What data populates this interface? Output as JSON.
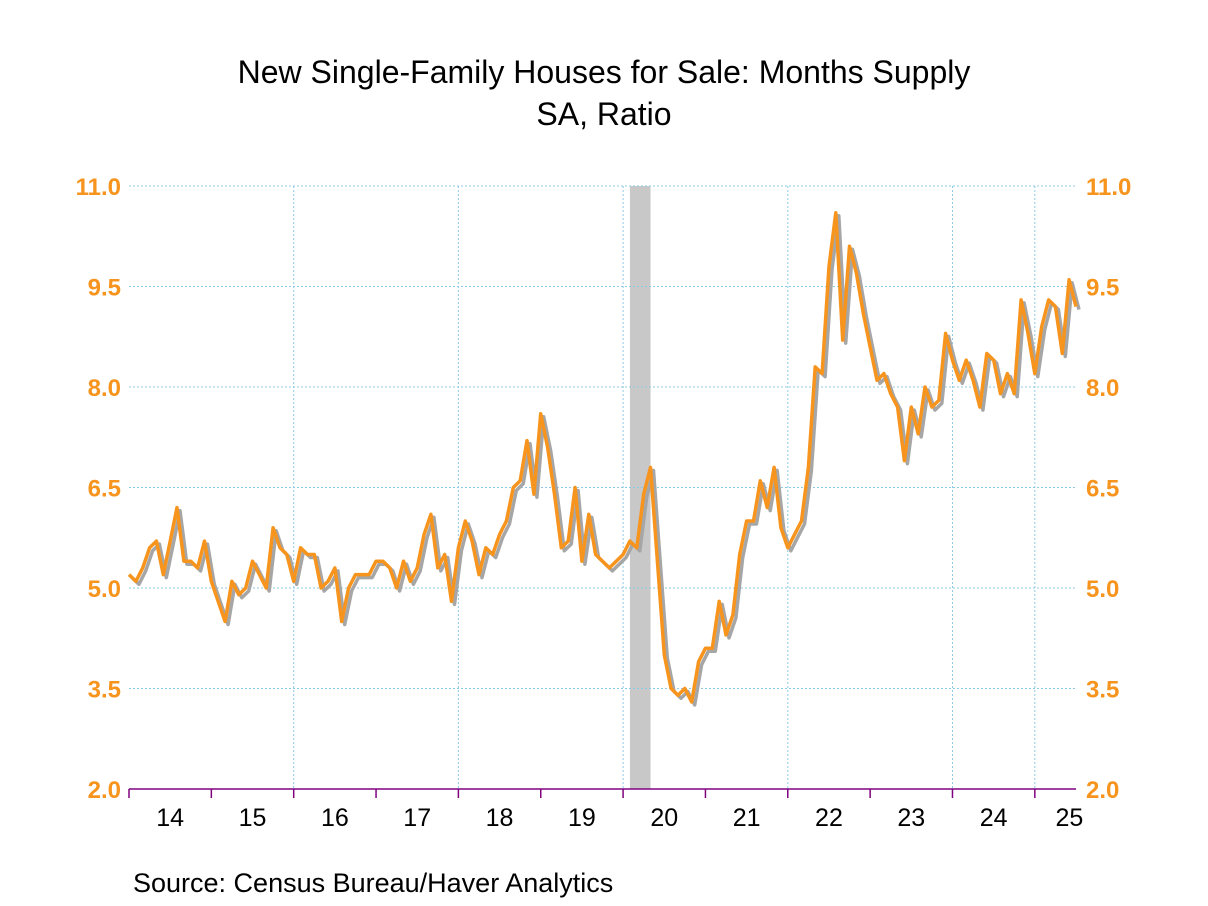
{
  "chart_data": {
    "type": "line",
    "title": "New Single-Family Houses for Sale: Months Supply",
    "subtitle": "SA, Ratio",
    "source": "Source:  Census Bureau/Haver Analytics",
    "ylim": [
      2.0,
      11.0
    ],
    "yticks": [
      "2.0",
      "3.5",
      "5.0",
      "6.5",
      "8.0",
      "9.5",
      "11.0"
    ],
    "xticks": [
      "14",
      "15",
      "16",
      "17",
      "18",
      "19",
      "20",
      "21",
      "22",
      "23",
      "24",
      "25"
    ],
    "xrange": [
      "2014-01",
      "2025-07"
    ],
    "grid": true,
    "recession": {
      "start": "2020-02",
      "end": "2020-04"
    },
    "colors": {
      "line": "#f7941d",
      "shadow": "#a6a6a6",
      "tick_label": "#f7941d",
      "axis": "#800080",
      "grid": "#8ecae6",
      "recession": "#c8c8c8"
    },
    "series": [
      {
        "x": [
          "2014-01",
          "2014-02",
          "2014-03",
          "2014-04",
          "2014-05",
          "2014-06",
          "2014-07",
          "2014-08",
          "2014-09",
          "2014-10",
          "2014-11",
          "2014-12",
          "2015-01",
          "2015-02",
          "2015-03",
          "2015-04",
          "2015-05",
          "2015-06",
          "2015-07",
          "2015-08",
          "2015-09",
          "2015-10",
          "2015-11",
          "2015-12",
          "2016-01",
          "2016-02",
          "2016-03",
          "2016-04",
          "2016-05",
          "2016-06",
          "2016-07",
          "2016-08",
          "2016-09",
          "2016-10",
          "2016-11",
          "2016-12",
          "2017-01",
          "2017-02",
          "2017-03",
          "2017-04",
          "2017-05",
          "2017-06",
          "2017-07",
          "2017-08",
          "2017-09",
          "2017-10",
          "2017-11",
          "2017-12",
          "2018-01",
          "2018-02",
          "2018-03",
          "2018-04",
          "2018-05",
          "2018-06",
          "2018-07",
          "2018-08",
          "2018-09",
          "2018-10",
          "2018-11",
          "2018-12",
          "2019-01",
          "2019-02",
          "2019-03",
          "2019-04",
          "2019-05",
          "2019-06",
          "2019-07",
          "2019-08",
          "2019-09",
          "2019-10",
          "2019-11",
          "2019-12",
          "2020-01",
          "2020-02",
          "2020-03",
          "2020-04",
          "2020-05",
          "2020-06",
          "2020-07",
          "2020-08",
          "2020-09",
          "2020-10",
          "2020-11",
          "2020-12",
          "2021-01",
          "2021-02",
          "2021-03",
          "2021-04",
          "2021-05",
          "2021-06",
          "2021-07",
          "2021-08",
          "2021-09",
          "2021-10",
          "2021-11",
          "2021-12",
          "2022-01",
          "2022-02",
          "2022-03",
          "2022-04",
          "2022-05",
          "2022-06",
          "2022-07",
          "2022-08",
          "2022-09",
          "2022-10",
          "2022-11",
          "2022-12",
          "2023-01",
          "2023-02",
          "2023-03",
          "2023-04",
          "2023-05",
          "2023-06",
          "2023-07",
          "2023-08",
          "2023-09",
          "2023-10",
          "2023-11",
          "2023-12",
          "2024-01",
          "2024-02",
          "2024-03",
          "2024-04",
          "2024-05",
          "2024-06",
          "2024-07",
          "2024-08",
          "2024-09",
          "2024-10",
          "2024-11",
          "2024-12",
          "2025-01",
          "2025-02",
          "2025-03",
          "2025-04",
          "2025-05",
          "2025-06",
          "2025-07"
        ],
        "values": [
          5.2,
          5.1,
          5.3,
          5.6,
          5.7,
          5.2,
          5.7,
          6.2,
          5.4,
          5.4,
          5.3,
          5.7,
          5.1,
          4.8,
          4.5,
          5.1,
          4.9,
          5.0,
          5.4,
          5.2,
          5.0,
          5.9,
          5.6,
          5.5,
          5.1,
          5.6,
          5.5,
          5.5,
          5.0,
          5.1,
          5.3,
          4.5,
          5.0,
          5.2,
          5.2,
          5.2,
          5.4,
          5.4,
          5.3,
          5.0,
          5.4,
          5.1,
          5.3,
          5.8,
          6.1,
          5.3,
          5.5,
          4.8,
          5.6,
          6.0,
          5.7,
          5.2,
          5.6,
          5.5,
          5.8,
          6.0,
          6.5,
          6.6,
          7.2,
          6.4,
          7.6,
          7.1,
          6.4,
          5.6,
          5.7,
          6.5,
          5.4,
          6.1,
          5.5,
          5.4,
          5.3,
          5.4,
          5.5,
          5.7,
          5.6,
          6.4,
          6.8,
          5.4,
          4.0,
          3.5,
          3.4,
          3.5,
          3.3,
          3.9,
          4.1,
          4.1,
          4.8,
          4.3,
          4.6,
          5.5,
          6.0,
          6.0,
          6.6,
          6.2,
          6.8,
          5.9,
          5.6,
          5.8,
          6.0,
          6.8,
          8.3,
          8.2,
          9.8,
          10.6,
          8.7,
          10.1,
          9.7,
          9.1,
          8.6,
          8.1,
          8.2,
          7.9,
          7.7,
          6.9,
          7.7,
          7.3,
          8.0,
          7.7,
          7.8,
          8.8,
          8.4,
          8.1,
          8.4,
          8.1,
          7.7,
          8.5,
          8.4,
          7.9,
          8.2,
          7.9,
          9.3,
          8.8,
          8.2,
          8.9,
          9.3,
          9.2,
          8.5,
          9.6,
          9.2
        ]
      }
    ]
  }
}
